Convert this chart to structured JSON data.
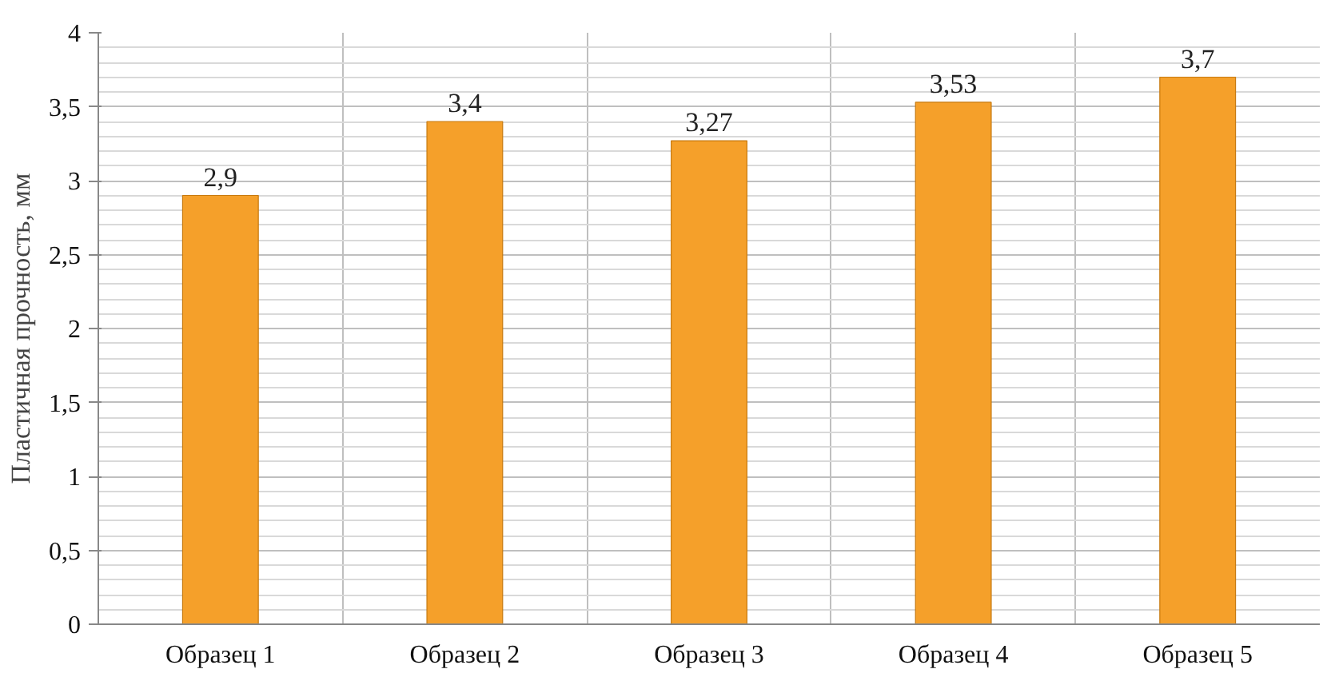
{
  "chart_data": {
    "type": "bar",
    "ylabel": "Пластичная прочность, мм",
    "categories": [
      "Образец 1",
      "Образец 2",
      "Образец 3",
      "Образец 4",
      "Образец 5"
    ],
    "values": [
      2.9,
      3.4,
      3.27,
      3.53,
      3.7
    ],
    "value_labels": [
      "2,9",
      "3,4",
      "3,27",
      "3,53",
      "3,7"
    ],
    "color": "#f5a02a",
    "ylim": [
      0,
      4
    ],
    "yticks": [
      0,
      {
        "value": 0.5,
        "label": "0,5"
      },
      1,
      {
        "value": 1.5,
        "label": "1,5"
      },
      2,
      {
        "value": 2.5,
        "label": "2,5"
      },
      3,
      {
        "value": 3.5,
        "label": "3,5"
      },
      4
    ],
    "grid": true
  }
}
